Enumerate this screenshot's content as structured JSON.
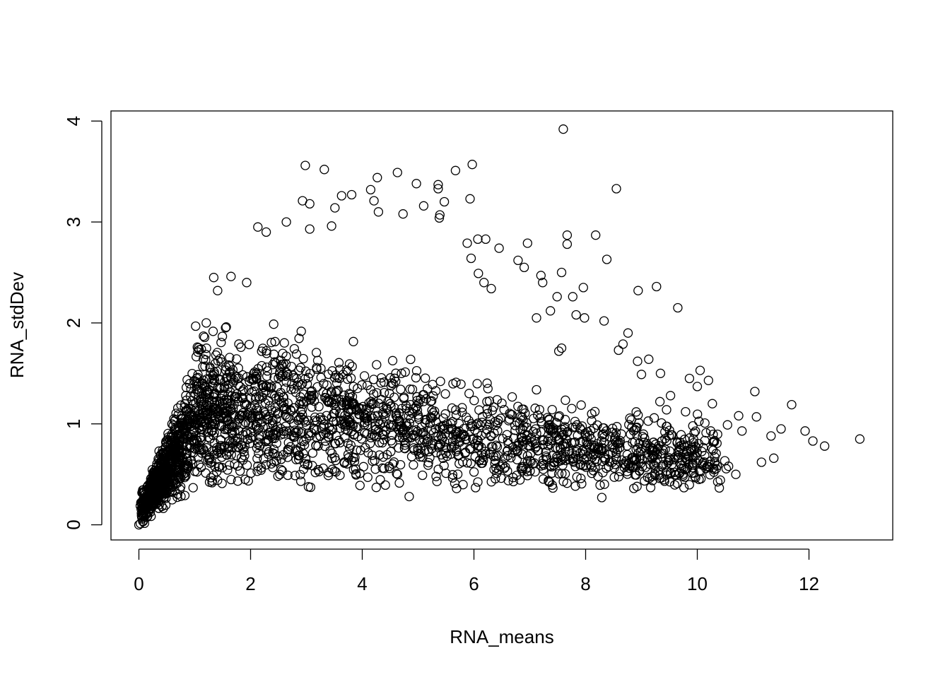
{
  "chart_data": {
    "type": "scatter",
    "title": "",
    "xlabel": "RNA_means",
    "ylabel": "RNA_stdDev",
    "xlim": [
      -0.5,
      13.5
    ],
    "ylim": [
      -0.15,
      4.1
    ],
    "x_ticks": [
      0,
      2,
      4,
      6,
      8,
      10,
      12
    ],
    "y_ticks": [
      0,
      1,
      2,
      3,
      4
    ],
    "x_tick_labels": [
      "0",
      "2",
      "4",
      "6",
      "8",
      "10",
      "12"
    ],
    "y_tick_labels": [
      "0",
      "1",
      "2",
      "3",
      "4"
    ],
    "grid": false,
    "legend": "none",
    "marker": "open-circle",
    "series": [
      {
        "color": "#000000",
        "points": [
          [
            7.6,
            3.92
          ],
          [
            8.55,
            3.33
          ],
          [
            2.98,
            3.56
          ],
          [
            3.32,
            3.52
          ],
          [
            5.97,
            3.57
          ],
          [
            5.67,
            3.51
          ],
          [
            4.63,
            3.49
          ],
          [
            4.27,
            3.44
          ],
          [
            5.36,
            3.37
          ],
          [
            4.97,
            3.38
          ],
          [
            5.36,
            3.33
          ],
          [
            4.15,
            3.32
          ],
          [
            3.81,
            3.27
          ],
          [
            3.63,
            3.26
          ],
          [
            2.93,
            3.21
          ],
          [
            3.06,
            3.18
          ],
          [
            4.21,
            3.21
          ],
          [
            5.93,
            3.23
          ],
          [
            5.47,
            3.2
          ],
          [
            5.1,
            3.16
          ],
          [
            4.73,
            3.08
          ],
          [
            5.39,
            3.07
          ],
          [
            5.38,
            3.04
          ],
          [
            4.29,
            3.1
          ],
          [
            3.51,
            3.14
          ],
          [
            2.64,
            3.0
          ],
          [
            3.45,
            2.96
          ],
          [
            3.06,
            2.93
          ],
          [
            2.13,
            2.95
          ],
          [
            2.28,
            2.9
          ],
          [
            7.67,
            2.87
          ],
          [
            8.18,
            2.87
          ],
          [
            6.07,
            2.83
          ],
          [
            6.21,
            2.83
          ],
          [
            7.67,
            2.78
          ],
          [
            6.96,
            2.79
          ],
          [
            5.88,
            2.79
          ],
          [
            8.38,
            2.63
          ],
          [
            6.45,
            2.74
          ],
          [
            6.79,
            2.62
          ],
          [
            6.9,
            2.55
          ],
          [
            7.2,
            2.47
          ],
          [
            7.57,
            2.5
          ],
          [
            5.95,
            2.64
          ],
          [
            6.08,
            2.49
          ],
          [
            7.23,
            2.4
          ],
          [
            6.31,
            2.34
          ],
          [
            6.18,
            2.4
          ],
          [
            9.27,
            2.36
          ],
          [
            8.94,
            2.32
          ],
          [
            7.49,
            2.26
          ],
          [
            7.77,
            2.26
          ],
          [
            7.96,
            2.35
          ],
          [
            9.65,
            2.15
          ],
          [
            7.37,
            2.12
          ],
          [
            7.83,
            2.08
          ],
          [
            7.98,
            2.05
          ],
          [
            8.33,
            2.02
          ],
          [
            7.12,
            2.05
          ],
          [
            1.65,
            2.46
          ],
          [
            1.34,
            2.45
          ],
          [
            1.93,
            2.4
          ],
          [
            1.41,
            2.32
          ],
          [
            8.76,
            1.9
          ],
          [
            8.67,
            1.79
          ],
          [
            7.57,
            1.75
          ],
          [
            7.52,
            1.72
          ],
          [
            8.59,
            1.73
          ],
          [
            9.13,
            1.64
          ],
          [
            8.93,
            1.62
          ],
          [
            9.0,
            1.49
          ],
          [
            9.34,
            1.5
          ],
          [
            9.86,
            1.45
          ],
          [
            10.05,
            1.53
          ],
          [
            10.2,
            1.43
          ],
          [
            10.0,
            1.37
          ],
          [
            9.52,
            1.28
          ],
          [
            9.33,
            1.22
          ],
          [
            11.03,
            1.32
          ],
          [
            10.27,
            1.2
          ],
          [
            11.69,
            1.19
          ],
          [
            9.45,
            1.14
          ],
          [
            9.79,
            1.12
          ],
          [
            10.74,
            1.08
          ],
          [
            11.06,
            1.07
          ],
          [
            12.91,
            0.85
          ],
          [
            12.28,
            0.78
          ],
          [
            12.07,
            0.83
          ],
          [
            11.93,
            0.93
          ],
          [
            11.5,
            0.95
          ],
          [
            11.32,
            0.88
          ],
          [
            10.8,
            0.93
          ],
          [
            10.54,
            0.99
          ],
          [
            10.24,
            0.93
          ],
          [
            9.92,
            0.98
          ],
          [
            10.56,
            0.58
          ],
          [
            10.69,
            0.5
          ],
          [
            11.15,
            0.62
          ],
          [
            11.37,
            0.66
          ],
          [
            10.03,
            0.45
          ],
          [
            9.11,
            0.47
          ],
          [
            8.92,
            0.38
          ],
          [
            8.29,
            0.27
          ],
          [
            4.84,
            0.28
          ],
          [
            4.25,
            0.37
          ],
          [
            3.96,
            0.39
          ],
          [
            5.69,
            0.36
          ],
          [
            1.49,
            0.41
          ],
          [
            0.0,
            0.0
          ],
          [
            0.05,
            0.09
          ],
          [
            0.1,
            0.17
          ],
          [
            0.15,
            0.25
          ],
          [
            0.22,
            0.32
          ],
          [
            0.3,
            0.42
          ],
          [
            0.38,
            0.5
          ],
          [
            0.45,
            0.58
          ],
          [
            0.55,
            0.68
          ],
          [
            0.65,
            0.8
          ],
          [
            0.8,
            0.94
          ],
          [
            0.95,
            1.08
          ]
        ]
      }
    ]
  }
}
